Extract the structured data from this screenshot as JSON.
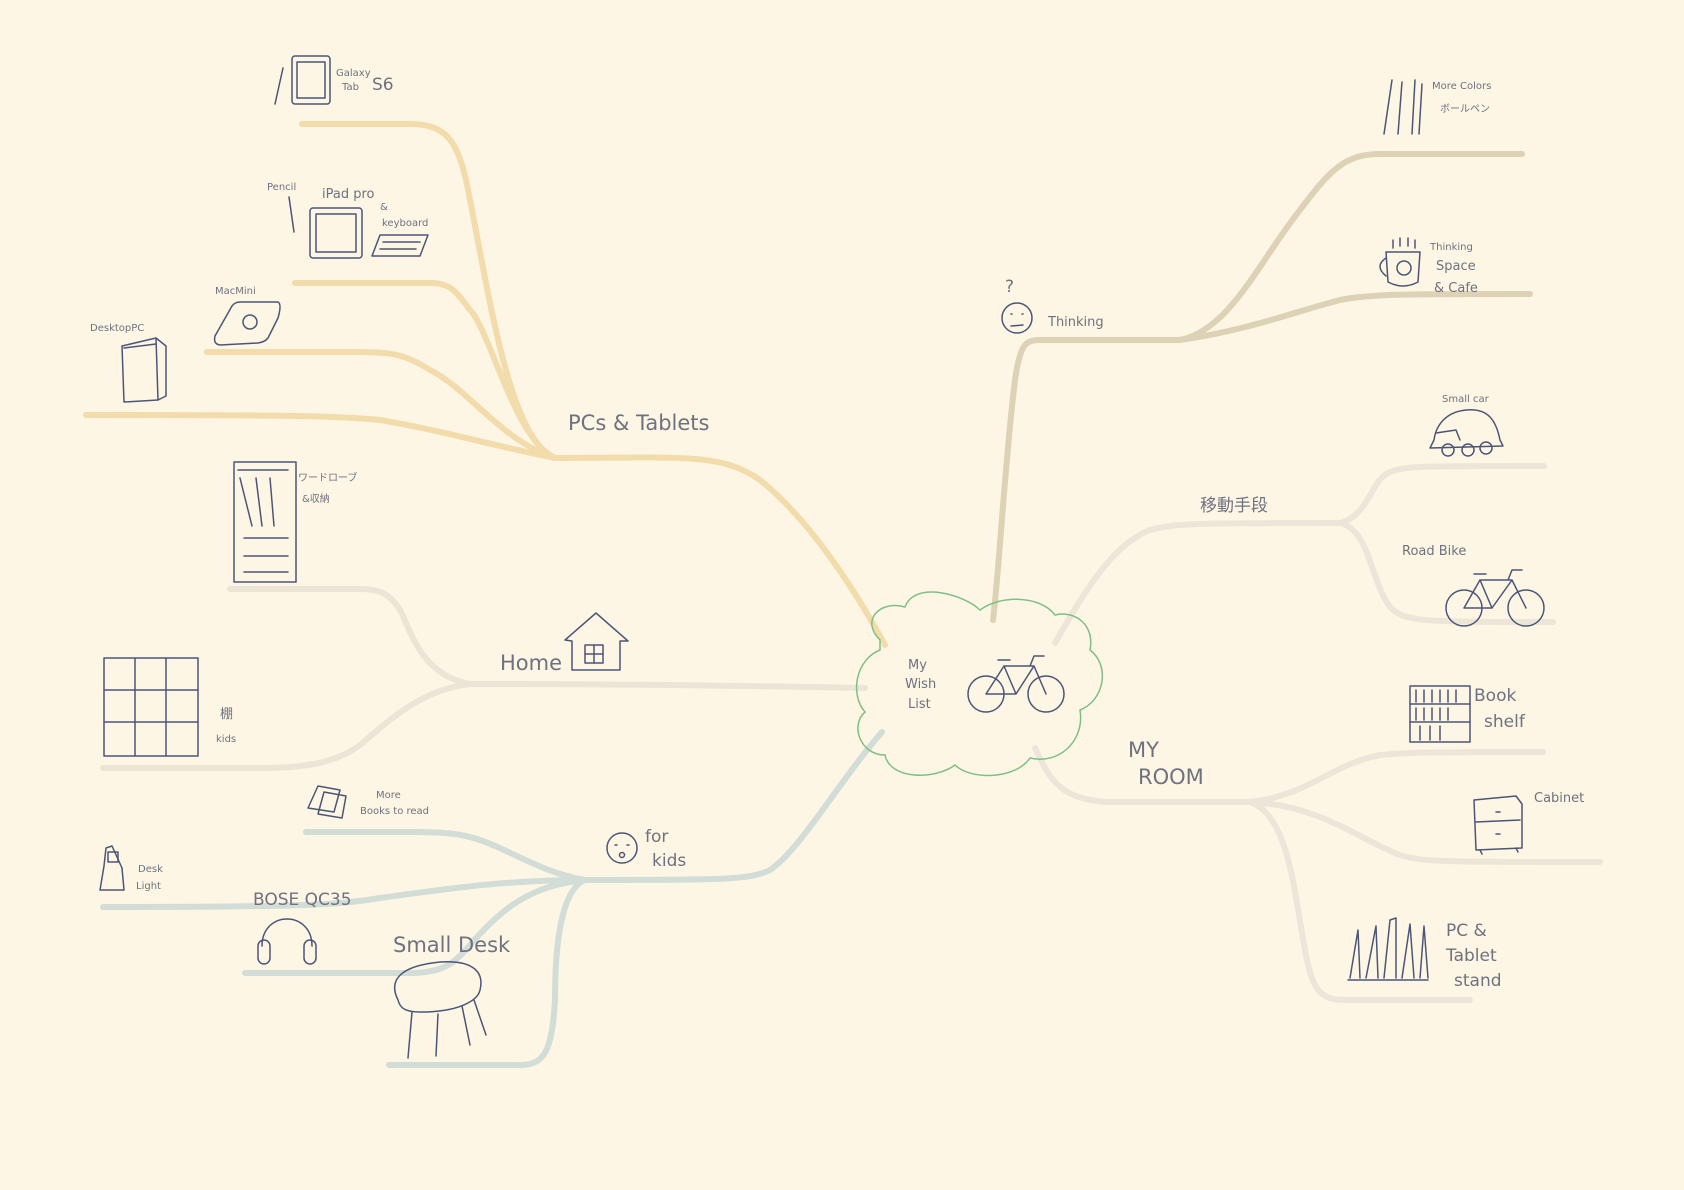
{
  "colors": {
    "background": "#fdf6e4",
    "pcs_tablets": "#f2dcac",
    "home": "#ece5d6",
    "for_kids": "#d1ddd6",
    "thinking": "#ddd1b6",
    "transport": "#ece6d9",
    "my_room": "#ece6d9",
    "center_outline": "#7fbf86",
    "ink": "#4c5578"
  },
  "center": {
    "line1": "My",
    "line2": "Wish",
    "line3": "List",
    "icon": "bicycle-icon"
  },
  "branches": {
    "pcs_tablets": {
      "label": "PCs & Tablets",
      "items": [
        {
          "line1": "Galaxy",
          "line2": "Tab",
          "line3": "S6",
          "icon": "tablet-icon"
        },
        {
          "line1": "Pencil",
          "line2": "iPad pro",
          "line3": "&",
          "line4": "keyboard",
          "icon": "ipad-icon"
        },
        {
          "line1": "MacMini",
          "icon": "mac-mini-icon"
        },
        {
          "line1": "DesktopPC",
          "icon": "desktop-pc-icon"
        }
      ]
    },
    "home": {
      "label": "Home",
      "icon": "house-icon",
      "items": [
        {
          "line1": "ワードローブ",
          "line2": "&収納",
          "icon": "wardrobe-icon"
        },
        {
          "line1": "棚",
          "line2": "kids",
          "icon": "shelf-icon"
        }
      ]
    },
    "for_kids": {
      "label_line1": "for",
      "label_line2": "kids",
      "icon": "smiley-icon",
      "items": [
        {
          "line1": "More",
          "line2": "Books to read",
          "icon": "books-icon"
        },
        {
          "line1": "Desk",
          "line2": "Light",
          "icon": "desk-light-icon"
        },
        {
          "line1": "BOSE QC35",
          "icon": "headphones-icon"
        },
        {
          "line1": "Small Desk",
          "icon": "small-desk-icon"
        }
      ]
    },
    "thinking": {
      "label": "Thinking",
      "icon": "thinking-face-icon",
      "items": [
        {
          "line1": "More Colors",
          "line2": "ボールペン",
          "icon": "pens-icon"
        },
        {
          "line1": "Thinking",
          "line2": "Space",
          "line3": "& Cafe",
          "icon": "coffee-cup-icon"
        }
      ]
    },
    "transport": {
      "label": "移動手段",
      "items": [
        {
          "line1": "Small car",
          "icon": "car-icon"
        },
        {
          "line1": "Road Bike",
          "icon": "road-bike-icon"
        }
      ]
    },
    "my_room": {
      "label_line1": "MY",
      "label_line2": "ROOM",
      "items": [
        {
          "line1": "Book",
          "line2": "shelf",
          "icon": "bookshelf-icon"
        },
        {
          "line1": "Cabinet",
          "icon": "cabinet-icon"
        },
        {
          "line1": "PC &",
          "line2": "Tablet",
          "line3": "stand",
          "icon": "pc-tablet-stand-icon"
        }
      ]
    }
  }
}
